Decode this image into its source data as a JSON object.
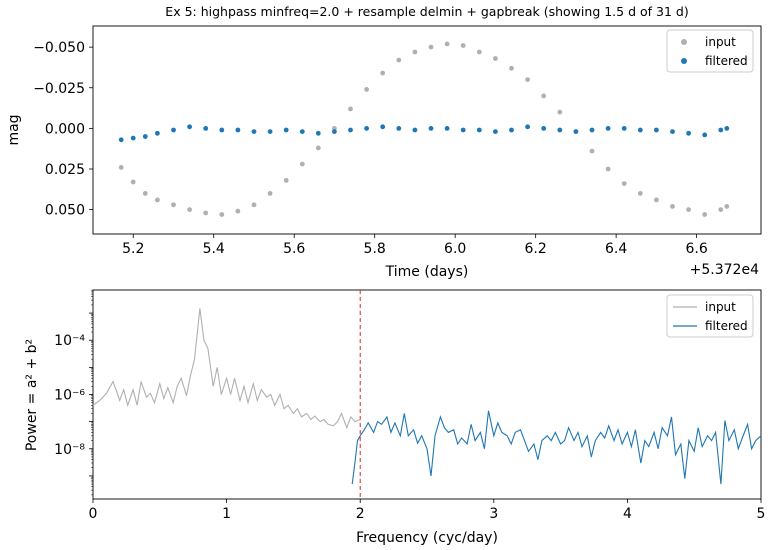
{
  "title": "Ex 5: highpass minfreq=2.0 + resample delmin + gapbreak  (showing 1.5 d of 31 d)",
  "colors": {
    "input": "#b0b0b0",
    "filtered": "#1f77b4",
    "cutoff": "#d62728"
  },
  "chart_data": [
    {
      "type": "scatter",
      "xlabel": "Time (days)",
      "ylabel": "mag",
      "x_offset_label": "+5.372e4",
      "x_offset": 53720,
      "xlim": [
        53725.1,
        53726.76
      ],
      "ylim": [
        0.065,
        -0.063
      ],
      "y_inverted": true,
      "xticks": [
        53725.2,
        53725.4,
        53725.6,
        53725.8,
        53726.0,
        53726.2,
        53726.4,
        53726.6
      ],
      "xtick_labels": [
        "5.2",
        "5.4",
        "5.6",
        "5.8",
        "6.0",
        "6.2",
        "6.4",
        "6.6"
      ],
      "yticks": [
        -0.05,
        -0.025,
        0.0,
        0.025,
        0.05
      ],
      "ytick_labels": [
        "−0.050",
        "−0.025",
        "0.000",
        "0.025",
        "0.050"
      ],
      "legend": {
        "position": "upper right",
        "entries": [
          "input",
          "filtered"
        ]
      },
      "series": [
        {
          "name": "input",
          "color": "#b0b0b0",
          "points": [
            [
              53725.17,
              0.024
            ],
            [
              53725.2,
              0.033
            ],
            [
              53725.23,
              0.04
            ],
            [
              53725.26,
              0.044
            ],
            [
              53725.3,
              0.047
            ],
            [
              53725.34,
              0.05
            ],
            [
              53725.38,
              0.052
            ],
            [
              53725.42,
              0.053
            ],
            [
              53725.46,
              0.051
            ],
            [
              53725.5,
              0.047
            ],
            [
              53725.54,
              0.04
            ],
            [
              53725.58,
              0.032
            ],
            [
              53725.62,
              0.022
            ],
            [
              53725.66,
              0.012
            ],
            [
              53725.7,
              0.0
            ],
            [
              53725.74,
              -0.012
            ],
            [
              53725.78,
              -0.024
            ],
            [
              53725.82,
              -0.034
            ],
            [
              53725.86,
              -0.042
            ],
            [
              53725.9,
              -0.047
            ],
            [
              53725.94,
              -0.05
            ],
            [
              53725.98,
              -0.052
            ],
            [
              53726.02,
              -0.051
            ],
            [
              53726.06,
              -0.047
            ],
            [
              53726.1,
              -0.043
            ],
            [
              53726.14,
              -0.037
            ],
            [
              53726.18,
              -0.03
            ],
            [
              53726.22,
              -0.02
            ],
            [
              53726.26,
              -0.01
            ],
            [
              53726.3,
              0.002
            ],
            [
              53726.34,
              0.014
            ],
            [
              53726.38,
              0.025
            ],
            [
              53726.42,
              0.034
            ],
            [
              53726.46,
              0.04
            ],
            [
              53726.5,
              0.044
            ],
            [
              53726.54,
              0.048
            ],
            [
              53726.58,
              0.05
            ],
            [
              53726.62,
              0.053
            ],
            [
              53726.66,
              0.05
            ],
            [
              53726.675,
              0.048
            ]
          ]
        },
        {
          "name": "filtered",
          "color": "#1f77b4",
          "points": [
            [
              53725.17,
              0.007
            ],
            [
              53725.2,
              0.006
            ],
            [
              53725.23,
              0.005
            ],
            [
              53725.26,
              0.003
            ],
            [
              53725.3,
              0.001
            ],
            [
              53725.34,
              -0.001
            ],
            [
              53725.38,
              0.0
            ],
            [
              53725.42,
              0.001
            ],
            [
              53725.46,
              0.001
            ],
            [
              53725.5,
              0.002
            ],
            [
              53725.54,
              0.002
            ],
            [
              53725.58,
              0.001
            ],
            [
              53725.62,
              0.002
            ],
            [
              53725.66,
              0.003
            ],
            [
              53725.7,
              0.002
            ],
            [
              53725.74,
              0.001
            ],
            [
              53725.78,
              0.0
            ],
            [
              53725.82,
              -0.001
            ],
            [
              53725.86,
              0.0
            ],
            [
              53725.9,
              0.001
            ],
            [
              53725.94,
              0.0
            ],
            [
              53725.98,
              0.0
            ],
            [
              53726.02,
              0.001
            ],
            [
              53726.06,
              0.001
            ],
            [
              53726.1,
              0.002
            ],
            [
              53726.14,
              0.001
            ],
            [
              53726.18,
              -0.001
            ],
            [
              53726.22,
              0.0
            ],
            [
              53726.26,
              0.001
            ],
            [
              53726.3,
              0.002
            ],
            [
              53726.34,
              0.001
            ],
            [
              53726.38,
              0.0
            ],
            [
              53726.42,
              0.0
            ],
            [
              53726.46,
              0.001
            ],
            [
              53726.5,
              0.001
            ],
            [
              53726.54,
              0.002
            ],
            [
              53726.58,
              0.003
            ],
            [
              53726.62,
              0.004
            ],
            [
              53726.66,
              0.001
            ],
            [
              53726.675,
              0.0
            ]
          ]
        }
      ]
    },
    {
      "type": "line",
      "xlabel": "Frequency (cyc/day)",
      "ylabel": "Power = a² + b²",
      "xlim": [
        0,
        5
      ],
      "ylim_log10": [
        -9.85,
        -2.15
      ],
      "y_scale": "log",
      "xticks": [
        0,
        1,
        2,
        3,
        4,
        5
      ],
      "xtick_labels": [
        "0",
        "1",
        "2",
        "3",
        "4",
        "5"
      ],
      "yticks_log10": [
        -4,
        -6,
        -8
      ],
      "ytick_labels": [
        "10⁻⁴",
        "10⁻⁶",
        "10⁻⁸"
      ],
      "cutoff_x": 2.0,
      "legend": {
        "position": "upper right",
        "entries": [
          "input",
          "filtered"
        ]
      },
      "series": [
        {
          "name": "input",
          "color": "#b0b0b0",
          "points": [
            [
              0.0,
              4e-07
            ],
            [
              0.05,
              6e-07
            ],
            [
              0.1,
              1.1e-06
            ],
            [
              0.13,
              2e-06
            ],
            [
              0.15,
              3e-06
            ],
            [
              0.18,
              1.2e-06
            ],
            [
              0.2,
              6e-07
            ],
            [
              0.23,
              1.5e-06
            ],
            [
              0.26,
              4e-07
            ],
            [
              0.3,
              1.5e-06
            ],
            [
              0.33,
              4e-07
            ],
            [
              0.36,
              3e-06
            ],
            [
              0.4,
              8e-07
            ],
            [
              0.43,
              1.1e-06
            ],
            [
              0.46,
              5e-07
            ],
            [
              0.5,
              2.5e-06
            ],
            [
              0.53,
              7e-07
            ],
            [
              0.56,
              1.8e-06
            ],
            [
              0.6,
              5e-07
            ],
            [
              0.63,
              2e-06
            ],
            [
              0.66,
              4e-06
            ],
            [
              0.7,
              9e-07
            ],
            [
              0.73,
              5e-06
            ],
            [
              0.76,
              2e-05
            ],
            [
              0.8,
              0.0015
            ],
            [
              0.83,
              0.0001
            ],
            [
              0.86,
              5e-05
            ],
            [
              0.9,
              2e-06
            ],
            [
              0.93,
              1e-05
            ],
            [
              0.96,
              1e-06
            ],
            [
              1.0,
              4e-06
            ],
            [
              1.03,
              1e-06
            ],
            [
              1.06,
              4e-06
            ],
            [
              1.1,
              6e-07
            ],
            [
              1.13,
              2e-06
            ],
            [
              1.16,
              5e-07
            ],
            [
              1.2,
              2.5e-06
            ],
            [
              1.23,
              6e-07
            ],
            [
              1.26,
              1.5e-06
            ],
            [
              1.3,
              8e-07
            ],
            [
              1.33,
              1e-06
            ],
            [
              1.36,
              4e-07
            ],
            [
              1.4,
              1e-06
            ],
            [
              1.43,
              3e-07
            ],
            [
              1.46,
              4e-07
            ],
            [
              1.5,
              2e-07
            ],
            [
              1.53,
              3e-07
            ],
            [
              1.56,
              1.5e-07
            ],
            [
              1.6,
              2e-07
            ],
            [
              1.63,
              1.2e-07
            ],
            [
              1.66,
              1.6e-07
            ],
            [
              1.7,
              1e-07
            ],
            [
              1.73,
              1.2e-07
            ],
            [
              1.76,
              8e-08
            ],
            [
              1.8,
              7e-08
            ],
            [
              1.83,
              1e-07
            ],
            [
              1.86,
              2e-07
            ],
            [
              1.9,
              6e-08
            ],
            [
              1.93,
              1.5e-07
            ],
            [
              1.96,
              1e-07
            ],
            [
              2.0,
              1.2e-07
            ]
          ]
        },
        {
          "name": "filtered",
          "color": "#1f77b4",
          "points": [
            [
              1.94,
              5e-10
            ],
            [
              1.96,
              3e-09
            ],
            [
              1.98,
              2e-08
            ],
            [
              2.0,
              3e-08
            ],
            [
              2.03,
              5e-08
            ],
            [
              2.06,
              9e-08
            ],
            [
              2.1,
              4e-08
            ],
            [
              2.13,
              1e-07
            ],
            [
              2.16,
              8e-08
            ],
            [
              2.2,
              1.5e-07
            ],
            [
              2.23,
              4e-08
            ],
            [
              2.26,
              9e-08
            ],
            [
              2.3,
              3e-08
            ],
            [
              2.33,
              2e-07
            ],
            [
              2.36,
              3e-08
            ],
            [
              2.4,
              5e-08
            ],
            [
              2.43,
              1.6e-08
            ],
            [
              2.46,
              3e-08
            ],
            [
              2.5,
              1e-08
            ],
            [
              2.53,
              1e-09
            ],
            [
              2.56,
              3e-08
            ],
            [
              2.6,
              1.5e-07
            ],
            [
              2.63,
              6e-08
            ],
            [
              2.66,
              4e-08
            ],
            [
              2.7,
              5e-08
            ],
            [
              2.73,
              1.5e-08
            ],
            [
              2.76,
              2.5e-08
            ],
            [
              2.8,
              1.5e-08
            ],
            [
              2.83,
              8e-08
            ],
            [
              2.86,
              2e-08
            ],
            [
              2.9,
              4e-08
            ],
            [
              2.93,
              1e-08
            ],
            [
              2.96,
              2.5e-07
            ],
            [
              3.0,
              3e-08
            ],
            [
              3.03,
              9e-08
            ],
            [
              3.06,
              4e-08
            ],
            [
              3.1,
              3e-08
            ],
            [
              3.13,
              1.5e-08
            ],
            [
              3.16,
              4e-08
            ],
            [
              3.2,
              5e-08
            ],
            [
              3.23,
              2e-08
            ],
            [
              3.26,
              8e-09
            ],
            [
              3.3,
              1.5e-08
            ],
            [
              3.33,
              4e-09
            ],
            [
              3.36,
              2e-08
            ],
            [
              3.4,
              3e-08
            ],
            [
              3.43,
              2e-08
            ],
            [
              3.46,
              4e-08
            ],
            [
              3.5,
              1.5e-08
            ],
            [
              3.53,
              2e-08
            ],
            [
              3.56,
              6e-08
            ],
            [
              3.6,
              2e-08
            ],
            [
              3.63,
              4e-08
            ],
            [
              3.66,
              1.2e-08
            ],
            [
              3.7,
              3e-08
            ],
            [
              3.73,
              5e-09
            ],
            [
              3.76,
              2e-08
            ],
            [
              3.8,
              4e-08
            ],
            [
              3.83,
              2.5e-08
            ],
            [
              3.86,
              7e-08
            ],
            [
              3.9,
              2e-08
            ],
            [
              3.93,
              5e-08
            ],
            [
              3.96,
              1.5e-08
            ],
            [
              4.0,
              4e-08
            ],
            [
              4.03,
              1.2e-08
            ],
            [
              4.06,
              5e-08
            ],
            [
              4.1,
              3e-09
            ],
            [
              4.13,
              2e-08
            ],
            [
              4.16,
              1.2e-08
            ],
            [
              4.2,
              4e-08
            ],
            [
              4.23,
              1e-08
            ],
            [
              4.26,
              6e-08
            ],
            [
              4.3,
              3e-08
            ],
            [
              4.33,
              1.5e-07
            ],
            [
              4.36,
              6e-09
            ],
            [
              4.4,
              1.5e-08
            ],
            [
              4.43,
              8e-10
            ],
            [
              4.46,
              2e-08
            ],
            [
              4.5,
              8e-09
            ],
            [
              4.53,
              6e-08
            ],
            [
              4.56,
              1.2e-08
            ],
            [
              4.6,
              3e-08
            ],
            [
              4.63,
              2e-08
            ],
            [
              4.66,
              4e-08
            ],
            [
              4.7,
              5e-10
            ],
            [
              4.73,
              1.1e-07
            ],
            [
              4.76,
              2e-08
            ],
            [
              4.8,
              5e-08
            ],
            [
              4.83,
              1e-08
            ],
            [
              4.86,
              2.5e-08
            ],
            [
              4.9,
              8e-08
            ],
            [
              4.93,
              1e-08
            ],
            [
              4.96,
              2e-08
            ],
            [
              5.0,
              3e-08
            ]
          ]
        }
      ]
    }
  ]
}
